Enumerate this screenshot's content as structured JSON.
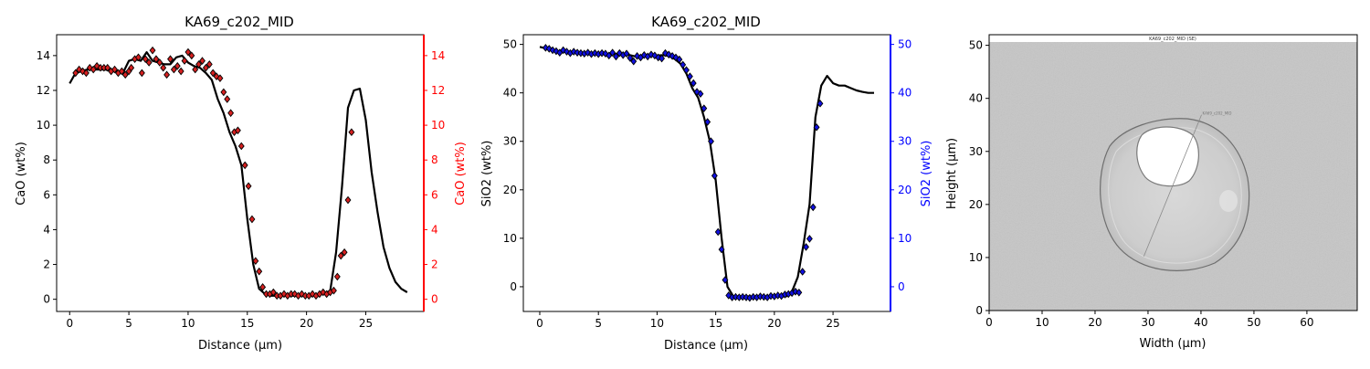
{
  "chart_data": [
    {
      "type": "line",
      "title": "KA69_c202_MID",
      "xlabel": "Distance (µm)",
      "ylabel": "CaO (wt%)",
      "ylabel_right": "CaO (wt%)",
      "xlim": [
        -1.1,
        29.9
      ],
      "ylim": [
        -0.7,
        15.2
      ],
      "x_ticks": [
        0,
        5,
        10,
        15,
        20,
        25
      ],
      "y_ticks": [
        0,
        2,
        4,
        6,
        8,
        10,
        12,
        14
      ],
      "y_ticks_right": [
        0,
        2,
        4,
        6,
        8,
        10,
        12,
        14
      ],
      "series": [
        {
          "kind": "line",
          "color": "#000000",
          "x": [
            0,
            0.5,
            1,
            1.5,
            2,
            2.5,
            3,
            3.5,
            4,
            4.5,
            5,
            5.5,
            6,
            6.5,
            7,
            7.5,
            8,
            8.5,
            9,
            9.5,
            10,
            10.5,
            11,
            11.5,
            12,
            12.5,
            13,
            13.5,
            14,
            14.5,
            15,
            15.5,
            16,
            16.5,
            17,
            17.5,
            18,
            18.5,
            19,
            19.5,
            20,
            20.5,
            21,
            21.5,
            22,
            22.5,
            23,
            23.5,
            24,
            24.5,
            25,
            25.5,
            26,
            26.5,
            27,
            27.5,
            28,
            28.5
          ],
          "y": [
            12.4,
            13.0,
            13.1,
            13.2,
            13.2,
            13.2,
            13.2,
            13.1,
            13.1,
            13.0,
            13.7,
            13.8,
            13.7,
            14.2,
            13.7,
            13.6,
            13.5,
            13.5,
            13.9,
            14.0,
            13.6,
            13.4,
            13.3,
            13.0,
            12.6,
            11.5,
            10.7,
            9.6,
            8.8,
            7.7,
            4.6,
            2.0,
            0.6,
            0.3,
            0.2,
            0.2,
            0.2,
            0.2,
            0.2,
            0.2,
            0.2,
            0.2,
            0.3,
            0.3,
            0.5,
            2.7,
            6.5,
            11.0,
            12.0,
            12.1,
            10.3,
            7.3,
            5.0,
            3.0,
            1.8,
            1.0,
            0.6,
            0.4
          ]
        },
        {
          "kind": "markers",
          "color": "#d62020",
          "x": [
            0.5,
            0.8,
            1.1,
            1.4,
            1.7,
            2.0,
            2.3,
            2.6,
            2.9,
            3.2,
            3.5,
            3.8,
            4.1,
            4.4,
            4.7,
            5.0,
            5.2,
            5.5,
            5.8,
            6.1,
            6.4,
            6.7,
            7.0,
            7.3,
            7.6,
            7.9,
            8.2,
            8.5,
            8.8,
            9.1,
            9.4,
            9.7,
            10.0,
            10.3,
            10.6,
            10.9,
            11.2,
            11.5,
            11.8,
            12.1,
            12.4,
            12.7,
            13.0,
            13.3,
            13.6,
            13.9,
            14.2,
            14.5,
            14.8,
            15.1,
            15.4,
            15.7,
            16.0,
            16.3,
            16.6,
            16.9,
            17.2,
            17.5,
            17.8,
            18.1,
            18.4,
            18.7,
            19.0,
            19.3,
            19.6,
            19.9,
            20.2,
            20.5,
            20.8,
            21.1,
            21.4,
            21.7,
            22.0,
            22.3,
            22.6,
            22.9,
            23.2,
            23.5,
            23.8
          ],
          "y": [
            13.0,
            13.2,
            13.1,
            13.0,
            13.3,
            13.2,
            13.4,
            13.3,
            13.3,
            13.3,
            13.1,
            13.2,
            13.0,
            13.1,
            12.9,
            13.1,
            13.3,
            13.8,
            13.9,
            13.0,
            13.8,
            13.6,
            14.3,
            13.8,
            13.6,
            13.3,
            12.9,
            13.8,
            13.2,
            13.4,
            13.1,
            13.7,
            14.2,
            14.0,
            13.2,
            13.5,
            13.7,
            13.3,
            13.5,
            13.0,
            12.8,
            12.7,
            11.9,
            11.5,
            10.7,
            9.6,
            9.7,
            8.8,
            7.7,
            6.5,
            4.6,
            2.2,
            1.6,
            0.7,
            0.3,
            0.3,
            0.4,
            0.2,
            0.2,
            0.3,
            0.2,
            0.3,
            0.3,
            0.2,
            0.3,
            0.2,
            0.2,
            0.3,
            0.2,
            0.3,
            0.4,
            0.3,
            0.4,
            0.5,
            1.3,
            2.5,
            2.7,
            5.7,
            9.6
          ]
        }
      ],
      "colors": {
        "line": "#000000",
        "markers": "#d62020",
        "right_axis": "#ff0000"
      }
    },
    {
      "type": "line",
      "title": "KA69_c202_MID",
      "xlabel": "Distance (µm)",
      "ylabel": "SiO2 (wt%)",
      "ylabel_right": "SiO2 (wt%)",
      "xlim": [
        -1.4,
        29.9
      ],
      "ylim": [
        -5.1,
        52.0
      ],
      "x_ticks": [
        0,
        5,
        10,
        15,
        20,
        25
      ],
      "y_ticks": [
        0,
        10,
        20,
        30,
        40,
        50
      ],
      "y_ticks_right": [
        0,
        10,
        20,
        30,
        40,
        50
      ],
      "series": [
        {
          "kind": "line",
          "color": "#000000",
          "x": [
            0,
            0.5,
            1,
            1.5,
            2,
            2.5,
            3,
            3.5,
            4,
            4.5,
            5,
            5.5,
            6,
            6.5,
            7,
            7.5,
            8,
            8.5,
            9,
            9.5,
            10,
            10.5,
            11,
            11.5,
            12,
            12.5,
            13,
            13.5,
            14,
            14.5,
            15,
            15.5,
            16,
            16.5,
            17,
            17.5,
            18,
            18.5,
            19,
            19.5,
            20,
            20.5,
            21,
            21.5,
            22,
            22.5,
            23,
            23.5,
            24,
            24.5,
            25,
            25.5,
            26,
            26.5,
            27,
            27.5,
            28,
            28.5
          ],
          "y": [
            49.5,
            49.2,
            48.8,
            48.6,
            48.5,
            48.4,
            48.3,
            48.2,
            48.1,
            48.1,
            48.0,
            48.0,
            48.0,
            48.0,
            47.9,
            47.9,
            47.6,
            47.3,
            47.5,
            47.6,
            47.7,
            47.8,
            47.6,
            47.0,
            46.0,
            44.0,
            41.0,
            39.0,
            35.0,
            30.0,
            22.0,
            10.0,
            0.0,
            -2.0,
            -2.0,
            -2.0,
            -2.0,
            -2.0,
            -2.0,
            -2.0,
            -2.0,
            -2.0,
            -2.0,
            -1.0,
            2.0,
            9.0,
            17.0,
            35.0,
            41.5,
            43.5,
            42.0,
            41.5,
            41.5,
            41.0,
            40.5,
            40.2,
            40.0,
            40.0
          ]
        },
        {
          "kind": "markers",
          "color": "#1010e0",
          "x": [
            0.5,
            0.8,
            1.1,
            1.4,
            1.7,
            2.0,
            2.3,
            2.6,
            2.9,
            3.2,
            3.5,
            3.8,
            4.1,
            4.4,
            4.7,
            5.0,
            5.3,
            5.6,
            5.9,
            6.2,
            6.5,
            6.8,
            7.1,
            7.4,
            7.7,
            8.0,
            8.3,
            8.6,
            8.9,
            9.2,
            9.5,
            9.8,
            10.1,
            10.4,
            10.7,
            11.0,
            11.3,
            11.6,
            11.9,
            12.2,
            12.5,
            12.8,
            13.1,
            13.4,
            13.7,
            14.0,
            14.3,
            14.6,
            14.9,
            15.2,
            15.5,
            15.8,
            16.1,
            16.4,
            16.7,
            17.0,
            17.3,
            17.6,
            17.9,
            18.2,
            18.5,
            18.8,
            19.1,
            19.4,
            19.7,
            20.0,
            20.3,
            20.6,
            20.9,
            21.2,
            21.5,
            21.8,
            22.1,
            22.4,
            22.7,
            23.0,
            23.3,
            23.6,
            23.9
          ],
          "y": [
            49.3,
            49.1,
            48.8,
            48.6,
            48.3,
            48.8,
            48.5,
            48.2,
            48.5,
            48.3,
            48.2,
            48.1,
            48.3,
            48.0,
            48.2,
            48.0,
            48.2,
            48.1,
            47.7,
            48.3,
            47.5,
            48.2,
            47.8,
            48.1,
            47.2,
            46.5,
            47.6,
            47.3,
            47.8,
            47.5,
            47.9,
            47.7,
            47.3,
            47.1,
            48.2,
            47.9,
            47.6,
            47.3,
            46.9,
            45.8,
            44.7,
            43.4,
            42.0,
            40.2,
            39.8,
            36.8,
            34.0,
            30.0,
            22.9,
            11.3,
            7.7,
            1.4,
            -1.8,
            -2.2,
            -2.1,
            -2.2,
            -2.1,
            -2.2,
            -2.3,
            -2.1,
            -2.2,
            -2.0,
            -2.1,
            -2.2,
            -1.9,
            -2.0,
            -1.8,
            -1.9,
            -1.6,
            -1.5,
            -1.3,
            -1.0,
            -1.2,
            3.1,
            8.2,
            9.9,
            16.4,
            32.9,
            37.8
          ]
        }
      ],
      "colors": {
        "line": "#000000",
        "markers": "#1010e0",
        "right_axis": "#0000ff"
      }
    },
    {
      "type": "image",
      "title": "KA69_c202_MID (SE)",
      "transect_label": "KA69_c202_MID",
      "xlabel": "Width (µm)",
      "ylabel": "Height (µm)",
      "xlim": [
        0,
        69.5
      ],
      "ylim": [
        0,
        52
      ],
      "x_ticks": [
        0,
        10,
        20,
        30,
        40,
        50,
        60
      ],
      "y_ticks": [
        0,
        10,
        20,
        30,
        40,
        50
      ],
      "transect": {
        "x": [
          29.2,
          40.1
        ],
        "y": [
          10.2,
          36.9
        ]
      }
    }
  ]
}
